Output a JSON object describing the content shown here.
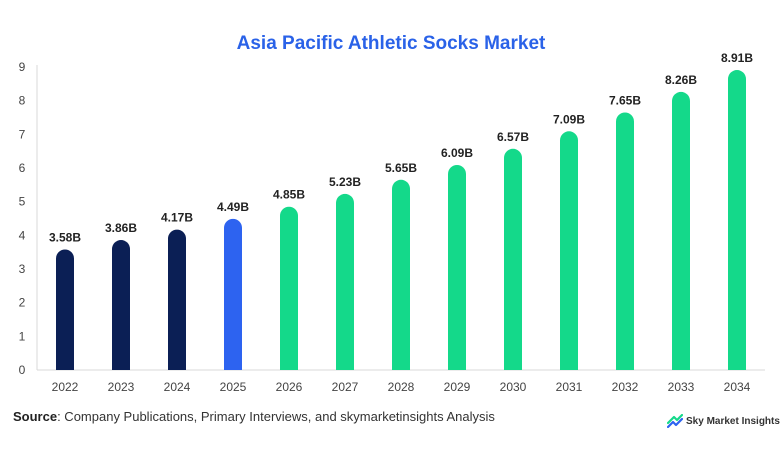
{
  "title": "Asia Pacific Athletic Socks Market",
  "source": {
    "label": "Source",
    "text": ": Company Publications, Primary Interviews, and skymarketinsights Analysis"
  },
  "brand": {
    "name": "Sky Market Insights",
    "icon": "sky-market-insights-logo-icon"
  },
  "colors": {
    "historical": "#0b1f55",
    "current": "#2d63f0",
    "forecast": "#14d98a",
    "title": "#2a62e8"
  },
  "chart_data": {
    "type": "bar",
    "title": "Asia Pacific Athletic Socks Market",
    "xlabel": "",
    "ylabel": "",
    "categories": [
      "2022",
      "2023",
      "2024",
      "2025",
      "2026",
      "2027",
      "2028",
      "2029",
      "2030",
      "2031",
      "2032",
      "2033",
      "2034"
    ],
    "values": [
      3.58,
      3.86,
      4.17,
      4.49,
      4.85,
      5.23,
      5.65,
      6.09,
      6.57,
      7.09,
      7.65,
      8.26,
      8.91
    ],
    "labels": [
      "3.58B",
      "3.86B",
      "4.17B",
      "4.49B",
      "4.85B",
      "5.23B",
      "5.65B",
      "6.09B",
      "6.57B",
      "7.09B",
      "7.65B",
      "8.26B",
      "8.91B"
    ],
    "bar_groups": [
      "historical",
      "historical",
      "historical",
      "current",
      "forecast",
      "forecast",
      "forecast",
      "forecast",
      "forecast",
      "forecast",
      "forecast",
      "forecast",
      "forecast"
    ],
    "ylim": [
      0,
      9
    ],
    "yticks": [
      0,
      1,
      2,
      3,
      4,
      5,
      6,
      7,
      8,
      9
    ],
    "grid": false,
    "legend": "none"
  }
}
